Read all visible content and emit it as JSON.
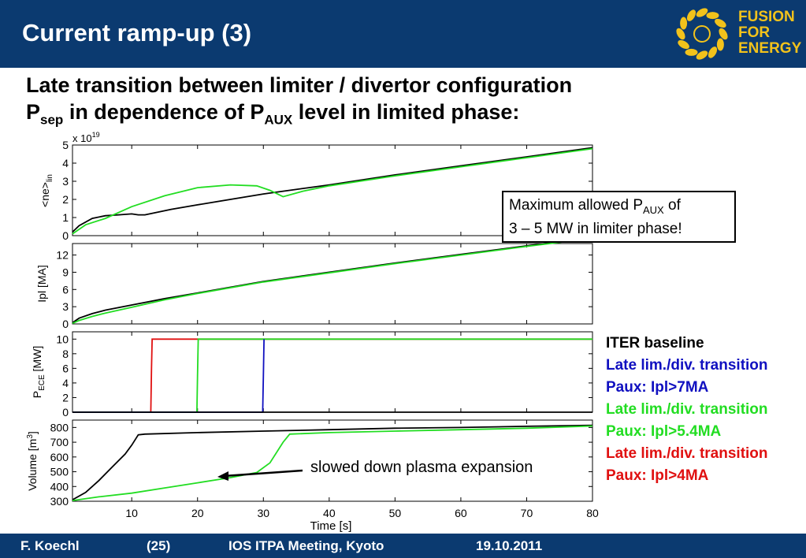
{
  "header": {
    "title": "Current ramp-up (3)"
  },
  "logo": {
    "lines": [
      "FUSION",
      "FOR",
      "ENERGY"
    ],
    "icon": "fusion-for-energy-star-ring-icon"
  },
  "subtitle": {
    "line1": "Late transition between limiter / divertor configuration",
    "line2_a": "P",
    "line2_sub1": "sep",
    "line2_b": " in dependence of P",
    "line2_sub2": "AUX",
    "line2_c": " level in limited phase:"
  },
  "callout": {
    "text_a": "Maximum allowed P",
    "text_sub": "AUX",
    "text_b": " of",
    "line2": "3 – 5 MW in limiter phase!"
  },
  "legend": {
    "items": [
      {
        "text": "ITER baseline",
        "color": "#000000"
      },
      {
        "text": "Late lim./div. transition",
        "color": "#1010c0"
      },
      {
        "text": "Paux: Ipl>7MA",
        "color": "#1010c0"
      },
      {
        "text": "Late lim./div. transition",
        "color": "#22dd22"
      },
      {
        "text": "Paux: Ipl>5.4MA",
        "color": "#22dd22"
      },
      {
        "text": "Late lim./div. transition",
        "color": "#e01010"
      },
      {
        "text": "Paux: Ipl>4MA",
        "color": "#e01010"
      }
    ]
  },
  "annotation": {
    "text": "slowed down plasma expansion"
  },
  "footer": {
    "author": "F. Koechl",
    "page": "(25)",
    "meeting": "IOS ITPA Meeting, Kyoto",
    "date": "19.10.2011"
  },
  "colors": {
    "header_bg": "#0b3a70",
    "logo_text": "#f2c21b",
    "black": "#000000",
    "green": "#22dd22",
    "red": "#e01010",
    "blue": "#1010c0"
  },
  "chart_data": [
    {
      "type": "line",
      "ylabel": "<ne>lin",
      "multiplier": "x 10^19",
      "xlim": [
        1,
        80
      ],
      "ylim": [
        0,
        5
      ],
      "yticks": [
        0,
        1,
        2,
        3,
        4,
        5
      ],
      "series": [
        {
          "color": "#000000",
          "x": [
            1,
            2,
            4,
            6,
            8,
            10,
            11,
            12,
            14,
            16,
            20,
            25,
            30,
            33,
            40,
            50,
            60,
            70,
            80
          ],
          "y": [
            0.2,
            0.55,
            0.95,
            1.1,
            1.15,
            1.2,
            1.15,
            1.15,
            1.3,
            1.45,
            1.7,
            2.0,
            2.3,
            2.45,
            2.8,
            3.35,
            3.85,
            4.35,
            4.85
          ]
        },
        {
          "color": "#22dd22",
          "x": [
            1,
            3,
            6,
            10,
            15,
            20,
            25,
            29,
            31,
            33,
            36,
            40,
            50,
            60,
            70,
            80
          ],
          "y": [
            0.1,
            0.6,
            0.95,
            1.6,
            2.2,
            2.65,
            2.8,
            2.75,
            2.5,
            2.15,
            2.45,
            2.75,
            3.3,
            3.8,
            4.3,
            4.8
          ]
        }
      ]
    },
    {
      "type": "line",
      "ylabel": "Ipl [MA]",
      "xlim": [
        1,
        80
      ],
      "ylim": [
        0,
        14
      ],
      "yticks": [
        0,
        3,
        6,
        9,
        12
      ],
      "series": [
        {
          "color": "#000000",
          "x": [
            1,
            2,
            4,
            6,
            10,
            15,
            20,
            30,
            40,
            50,
            60,
            70,
            80
          ],
          "y": [
            0.2,
            1.0,
            1.8,
            2.4,
            3.3,
            4.4,
            5.4,
            7.4,
            9.0,
            10.6,
            12.1,
            13.6,
            15.0
          ]
        },
        {
          "color": "#22dd22",
          "x": [
            1,
            2,
            4,
            6,
            10,
            15,
            20,
            30,
            40,
            50,
            60,
            70,
            80
          ],
          "y": [
            0.1,
            0.6,
            1.3,
            1.9,
            2.9,
            4.2,
            5.3,
            7.3,
            8.9,
            10.5,
            12.0,
            13.5,
            14.9
          ]
        }
      ]
    },
    {
      "type": "line",
      "ylabel": "PECE [MW]",
      "xlim": [
        1,
        80
      ],
      "ylim": [
        0,
        11
      ],
      "yticks": [
        0,
        2,
        4,
        6,
        8,
        10
      ],
      "series": [
        {
          "color": "#e01010",
          "x": [
            1,
            12.9,
            13,
            13.1,
            80
          ],
          "y": [
            0,
            0,
            6,
            10,
            10
          ]
        },
        {
          "color": "#22dd22",
          "x": [
            1,
            19.9,
            20,
            20.1,
            80
          ],
          "y": [
            0,
            0,
            5,
            10,
            10
          ]
        },
        {
          "color": "#1010c0",
          "x": [
            1,
            29.9,
            30,
            30.1
          ],
          "y": [
            0,
            0,
            5,
            10
          ]
        },
        {
          "color": "#000000",
          "x": [
            1,
            80
          ],
          "y": [
            0,
            0
          ]
        }
      ]
    },
    {
      "type": "line",
      "ylabel": "Volume [m3]",
      "xlabel": "Time [s]",
      "xlim": [
        1,
        80
      ],
      "ylim": [
        300,
        850
      ],
      "xticks": [
        10,
        20,
        30,
        40,
        50,
        60,
        70,
        80
      ],
      "yticks": [
        300,
        400,
        500,
        600,
        700,
        800
      ],
      "series": [
        {
          "color": "#000000",
          "x": [
            1,
            3,
            5,
            7,
            9,
            10,
            11,
            12,
            20,
            30,
            40,
            50,
            60,
            70,
            80
          ],
          "y": [
            310,
            360,
            440,
            530,
            620,
            680,
            750,
            755,
            765,
            775,
            785,
            795,
            800,
            808,
            815
          ]
        },
        {
          "color": "#22dd22",
          "x": [
            1,
            5,
            10,
            15,
            20,
            25,
            29,
            31,
            33,
            34,
            40,
            50,
            60,
            70,
            80
          ],
          "y": [
            305,
            330,
            355,
            390,
            425,
            460,
            495,
            560,
            700,
            755,
            765,
            775,
            785,
            795,
            810
          ]
        }
      ]
    }
  ]
}
